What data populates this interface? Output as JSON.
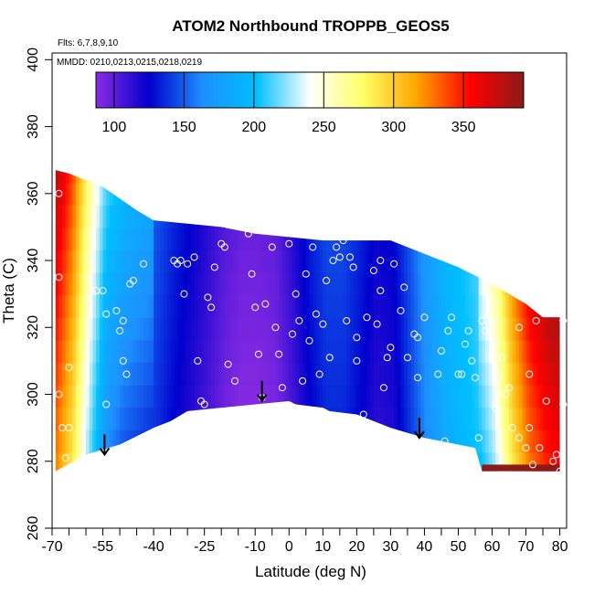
{
  "chart_data": {
    "type": "heatmap",
    "title": "ATOM2 Northbound TROPPB_GEOS5",
    "annotations": [
      "Flts: 6,7,8,9,10",
      "MMDD: 0210,0213,0215,0218,0219"
    ],
    "xlabel": "Latitude (deg N)",
    "ylabel": "Theta (C)",
    "xlim": [
      -70,
      82
    ],
    "ylim": [
      260,
      402
    ],
    "xticks": [
      -70,
      -55,
      -40,
      -25,
      -10,
      0,
      10,
      20,
      30,
      40,
      50,
      60,
      70,
      80
    ],
    "xtick_labels": [
      "-70",
      "-55",
      "-40",
      "-25",
      "-10",
      "0",
      "10",
      "20",
      "30",
      "40",
      "50",
      "60",
      "70",
      "80"
    ],
    "xtick_minor": [
      -65,
      -60,
      -50,
      -45,
      -35,
      -30,
      -20,
      -15,
      -5,
      5,
      15,
      25,
      35,
      45,
      55,
      65,
      75
    ],
    "yticks": [
      260,
      280,
      300,
      320,
      340,
      360,
      380,
      400
    ],
    "ytick_labels": [
      "260",
      "280",
      "300",
      "320",
      "340",
      "360",
      "380",
      "400"
    ],
    "colorbar": {
      "range": [
        87,
        393
      ],
      "ticks": [
        100,
        150,
        200,
        250,
        300,
        350
      ],
      "tick_labels": [
        "100",
        "150",
        "200",
        "250",
        "300",
        "350"
      ],
      "colors": [
        "#8a2be2",
        "#0000cd",
        "#1e90ff",
        "#00bfff",
        "#ffffff",
        "#ffff66",
        "#ffa500",
        "#ff0000",
        "#8b1a1a"
      ]
    },
    "tropopause_arrows": [
      {
        "lat": -54.5,
        "theta": 282
      },
      {
        "lat": -8,
        "theta": 298
      },
      {
        "lat": 38.5,
        "theta": 287
      }
    ],
    "field_profile": {
      "lat": [
        -69,
        -64,
        -59,
        -54,
        -49,
        -44,
        -39,
        -34,
        -29,
        -24,
        -19,
        -14,
        -9,
        -4,
        1,
        6,
        11,
        16,
        21,
        26,
        31,
        36,
        41,
        46,
        51,
        56,
        61,
        66,
        71,
        76,
        80
      ],
      "values": [
        340,
        300,
        230,
        175,
        158,
        150,
        142,
        130,
        120,
        110,
        98,
        92,
        92,
        95,
        110,
        128,
        140,
        140,
        130,
        118,
        122,
        145,
        170,
        190,
        200,
        210,
        240,
        300,
        340,
        360,
        370
      ]
    },
    "top_boundary": {
      "lat": [
        -69,
        -65,
        -55,
        -45,
        -40,
        -30,
        -20,
        -10,
        0,
        10,
        20,
        30,
        40,
        50,
        60,
        65,
        70,
        75
      ],
      "theta": [
        367,
        366,
        362,
        355,
        352,
        351,
        350,
        348,
        347,
        346,
        346,
        346,
        342,
        338,
        333,
        330,
        327,
        323
      ]
    },
    "bottom_boundary": {
      "lat": [
        -69,
        -60,
        -50,
        -40,
        -35,
        -30,
        -20,
        -10,
        0,
        2,
        10,
        12,
        20,
        30,
        40,
        50,
        55,
        57,
        60,
        70,
        80
      ],
      "theta": [
        277,
        282,
        285,
        290,
        292,
        295,
        296,
        297,
        298,
        297,
        296,
        295,
        294,
        290,
        287,
        285,
        284,
        277,
        277,
        277,
        277
      ]
    },
    "sample_points": [
      [
        -68,
        360
      ],
      [
        -68,
        335
      ],
      [
        -68,
        300
      ],
      [
        -67,
        290
      ],
      [
        -66,
        281
      ],
      [
        -65,
        308
      ],
      [
        -65,
        290
      ],
      [
        -61,
        290
      ],
      [
        -57,
        331
      ],
      [
        -54,
        324
      ],
      [
        -54,
        297
      ],
      [
        -55,
        331
      ],
      [
        -51,
        325
      ],
      [
        -50,
        319
      ],
      [
        -49,
        322
      ],
      [
        -49,
        310
      ],
      [
        -48,
        306
      ],
      [
        -47,
        333
      ],
      [
        -46,
        334
      ],
      [
        -43,
        339
      ],
      [
        -38,
        286
      ],
      [
        -34,
        340
      ],
      [
        -33,
        339
      ],
      [
        -32,
        340
      ],
      [
        -31,
        330
      ],
      [
        -30,
        339
      ],
      [
        -28,
        341
      ],
      [
        -27,
        310
      ],
      [
        -26,
        298
      ],
      [
        -25,
        297
      ],
      [
        -24,
        329
      ],
      [
        -23,
        326
      ],
      [
        -22,
        338
      ],
      [
        -20,
        345
      ],
      [
        -19,
        344
      ],
      [
        -18,
        309
      ],
      [
        -16,
        304
      ],
      [
        -12,
        348
      ],
      [
        -11,
        336
      ],
      [
        -10,
        326
      ],
      [
        -9,
        312
      ],
      [
        -8,
        299
      ],
      [
        -7,
        327
      ],
      [
        -5,
        344
      ],
      [
        -4,
        320
      ],
      [
        -3,
        312
      ],
      [
        -2,
        302
      ],
      [
        0,
        345
      ],
      [
        1,
        318
      ],
      [
        2,
        330
      ],
      [
        3,
        322
      ],
      [
        4,
        304
      ],
      [
        5,
        336
      ],
      [
        6,
        316
      ],
      [
        7,
        344
      ],
      [
        8,
        324
      ],
      [
        9,
        306
      ],
      [
        10,
        321
      ],
      [
        11,
        334
      ],
      [
        12,
        311
      ],
      [
        13,
        340
      ],
      [
        14,
        344
      ],
      [
        15,
        341
      ],
      [
        16,
        346
      ],
      [
        17,
        322
      ],
      [
        18,
        341
      ],
      [
        19,
        338
      ],
      [
        20,
        317
      ],
      [
        20,
        310
      ],
      [
        22,
        294
      ],
      [
        23,
        323
      ],
      [
        25,
        337
      ],
      [
        26,
        321
      ],
      [
        27,
        331
      ],
      [
        27,
        340
      ],
      [
        28,
        302
      ],
      [
        29,
        311
      ],
      [
        30,
        314
      ],
      [
        31,
        339
      ],
      [
        33,
        325
      ],
      [
        34,
        332
      ],
      [
        35,
        311
      ],
      [
        37,
        318
      ],
      [
        38,
        317
      ],
      [
        38,
        305
      ],
      [
        40,
        323
      ],
      [
        42,
        343
      ],
      [
        44,
        306
      ],
      [
        45,
        313
      ],
      [
        46,
        286
      ],
      [
        47,
        319
      ],
      [
        48,
        323
      ],
      [
        50,
        306
      ],
      [
        51,
        306
      ],
      [
        52,
        315
      ],
      [
        53,
        319
      ],
      [
        54,
        310
      ],
      [
        55,
        305
      ],
      [
        56,
        287
      ],
      [
        57,
        322
      ],
      [
        58,
        319
      ],
      [
        60,
        311
      ],
      [
        61,
        296
      ],
      [
        62,
        305
      ],
      [
        63,
        311
      ],
      [
        64,
        300
      ],
      [
        65,
        302
      ],
      [
        66,
        290
      ],
      [
        68,
        287
      ],
      [
        68,
        320
      ],
      [
        70,
        284
      ],
      [
        71,
        306
      ],
      [
        71,
        290
      ],
      [
        72,
        279
      ],
      [
        73,
        322
      ],
      [
        74,
        284
      ],
      [
        76,
        298
      ],
      [
        78,
        280
      ],
      [
        79,
        282
      ],
      [
        80,
        277
      ],
      [
        81,
        322
      ],
      [
        81,
        297
      ]
    ]
  }
}
